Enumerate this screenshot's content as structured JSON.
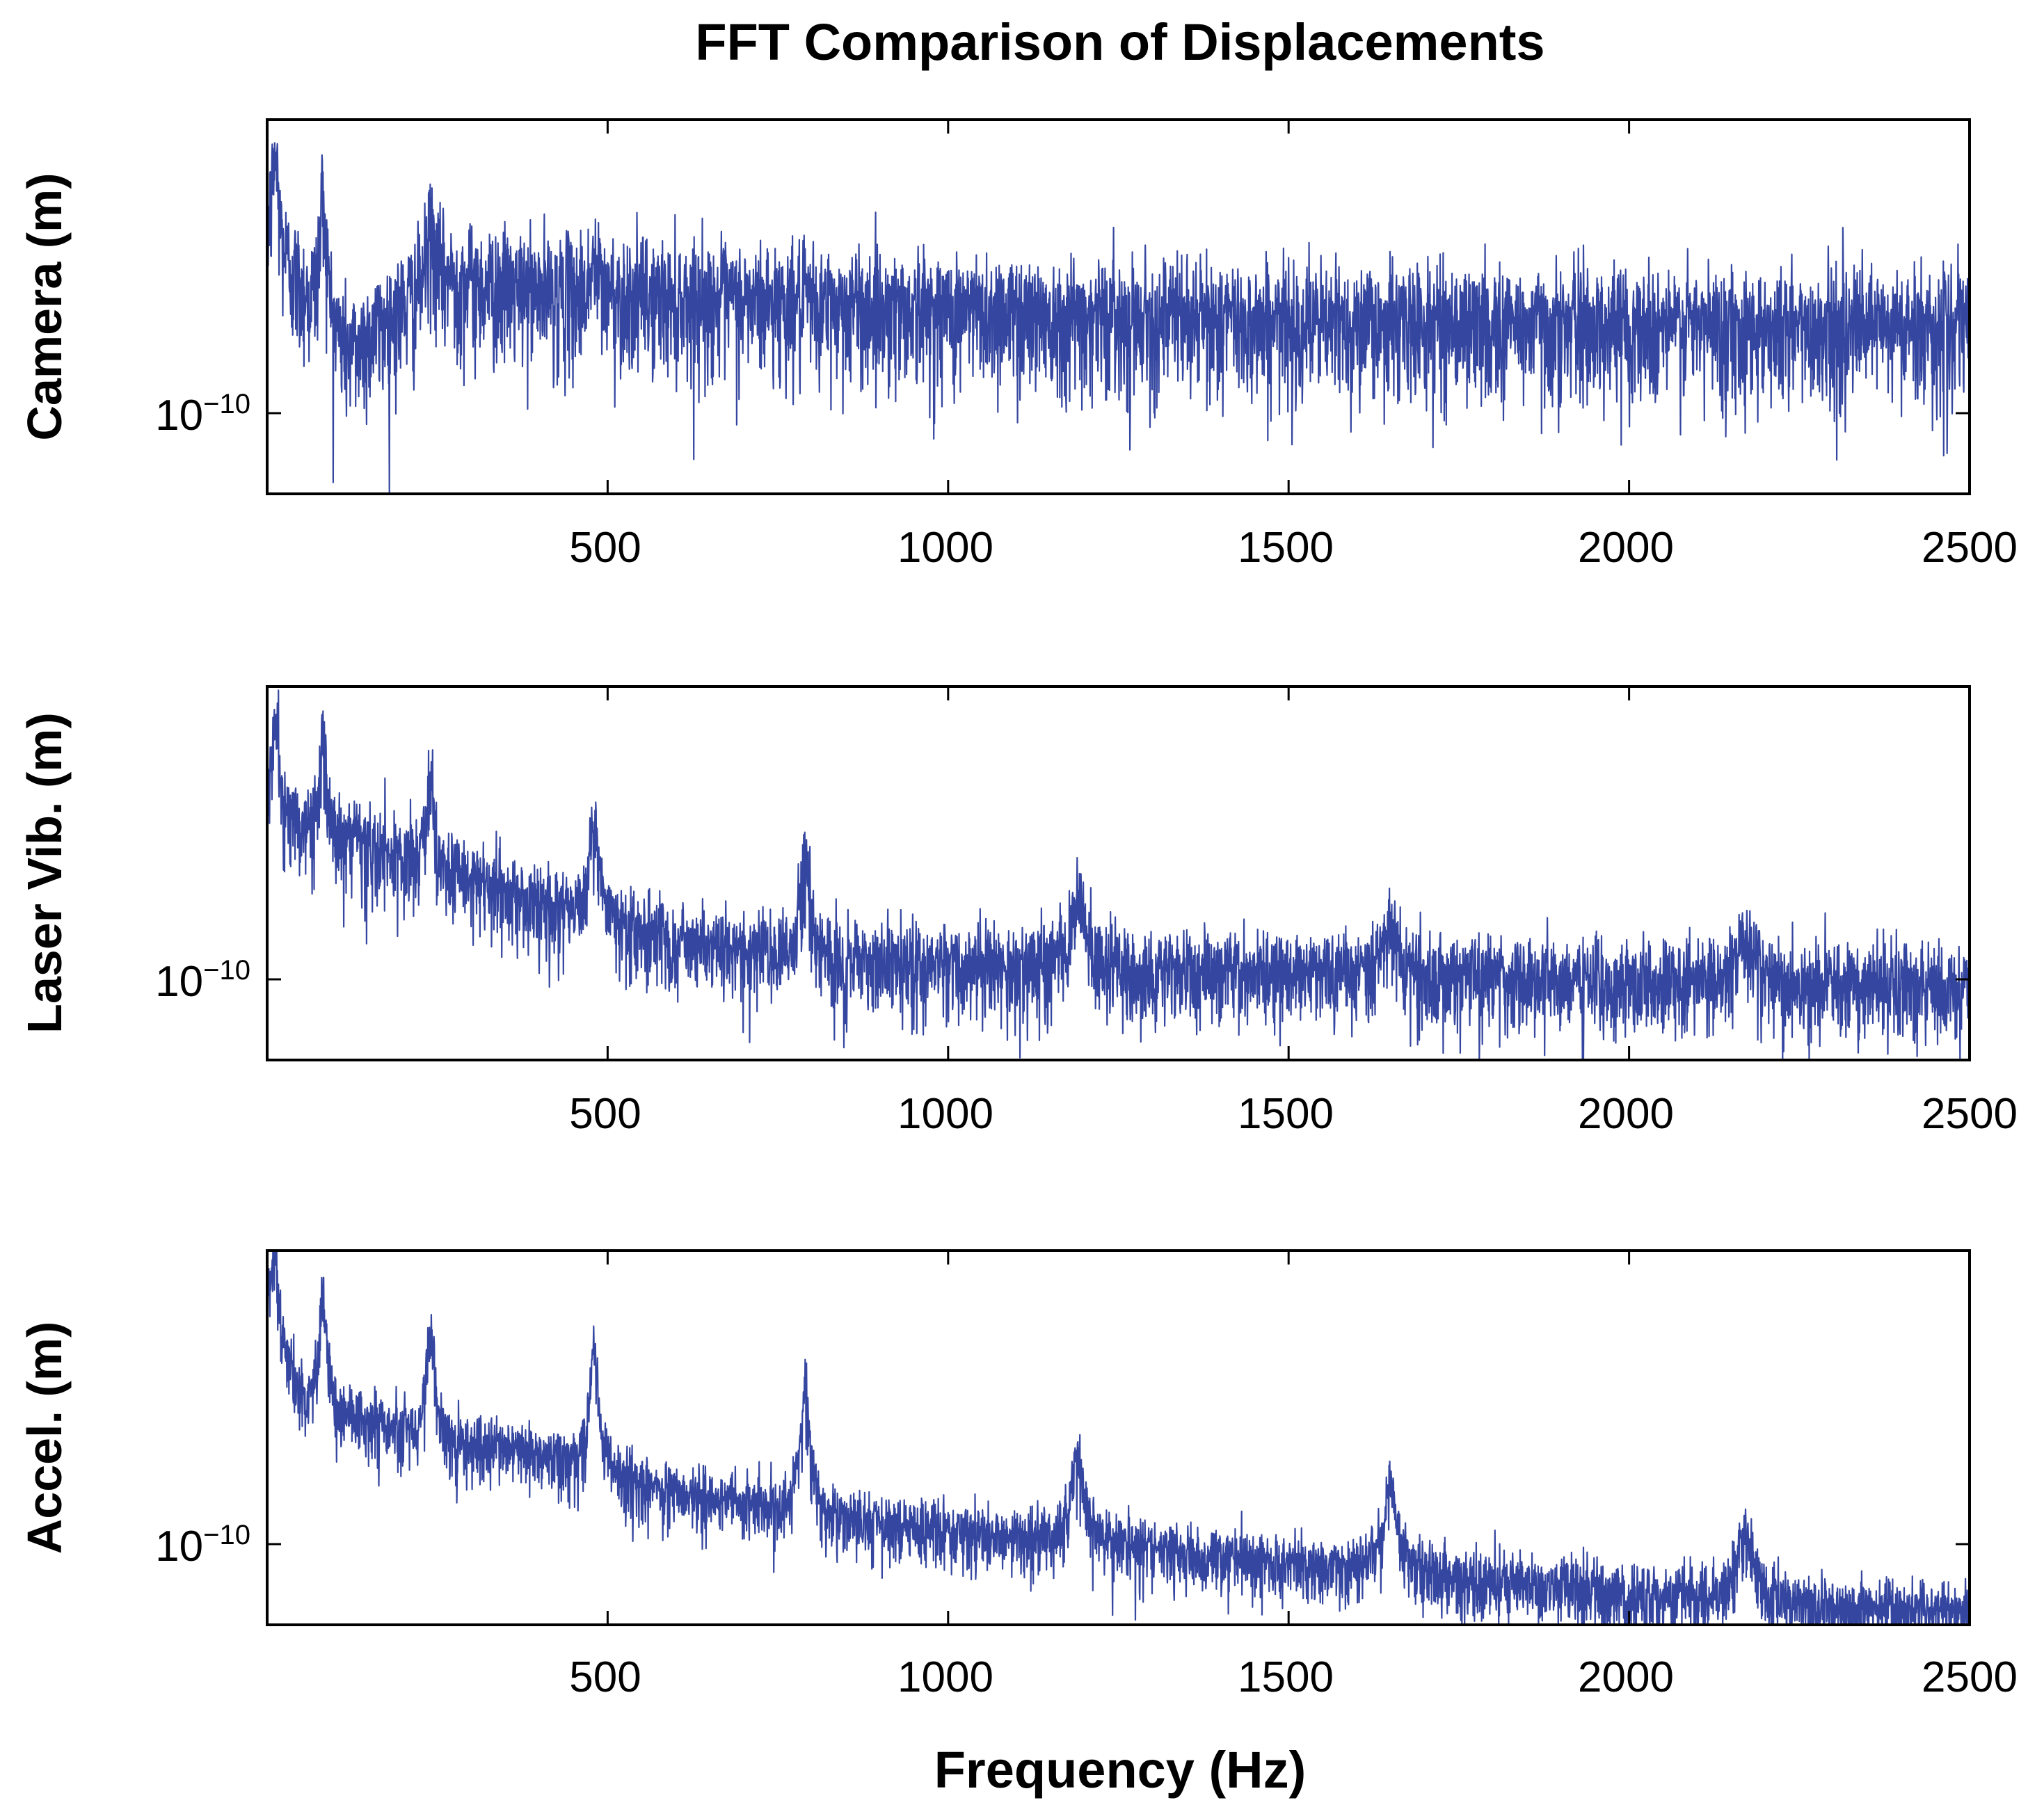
{
  "chart_data": [
    {
      "type": "line",
      "title": "FFT Comparison of Displacements",
      "ylabel": "Camera (m)",
      "xlabel": "",
      "xlim": [
        0,
        2500
      ],
      "xticks": [
        "500",
        "1000",
        "1500",
        "2000",
        "2500"
      ],
      "xtick_values": [
        500,
        1000,
        1500,
        2000,
        2500
      ],
      "yscale": "log",
      "ylim_log10": [
        -10.9,
        -7.8
      ],
      "yticks": [
        {
          "base": "10",
          "exponent": "−10",
          "value_log10": -10
        }
      ],
      "series": [
        {
          "name": "Camera",
          "color": "#3546a0",
          "baseline_log10": [
            [
              0,
              -8.8
            ],
            [
              40,
              -9.1
            ],
            [
              60,
              -9.3
            ],
            [
              120,
              -9.7
            ],
            [
              250,
              -9.1
            ],
            [
              400,
              -9.2
            ],
            [
              1000,
              -9.35
            ],
            [
              1500,
              -9.45
            ],
            [
              2500,
              -9.5
            ]
          ],
          "noise_sigma_log10": 0.22,
          "peaks": [
            [
              12,
              -8.1
            ],
            [
              82,
              -8.4
            ],
            [
              240,
              -8.7
            ],
            [
              480,
              -9.0
            ]
          ]
        }
      ]
    },
    {
      "type": "line",
      "ylabel": "Laser Vib. (m)",
      "xlim": [
        0,
        2500
      ],
      "xticks": [
        "500",
        "1000",
        "1500",
        "2000",
        "2500"
      ],
      "xtick_values": [
        500,
        1000,
        1500,
        2000,
        2500
      ],
      "yscale": "log",
      "ylim_log10": [
        -10.75,
        -7.75
      ],
      "yticks": [
        {
          "base": "10",
          "exponent": "−10",
          "value_log10": -10
        }
      ],
      "series": [
        {
          "name": "Laser Vib.",
          "color": "#3546a0",
          "baseline_log10": [
            [
              0,
              -8.7
            ],
            [
              50,
              -8.9
            ],
            [
              200,
              -9.15
            ],
            [
              400,
              -9.5
            ],
            [
              600,
              -9.8
            ],
            [
              800,
              -9.95
            ],
            [
              1200,
              -10.0
            ],
            [
              2500,
              -10.15
            ]
          ],
          "noise_sigma_log10": 0.15,
          "peaks": [
            [
              12,
              -8.05
            ],
            [
              82,
              -8.2
            ],
            [
              240,
              -8.5
            ],
            [
              480,
              -8.75
            ],
            [
              790,
              -9.15
            ],
            [
              1190,
              -9.4
            ],
            [
              1650,
              -9.7
            ],
            [
              2170,
              -9.75
            ]
          ]
        }
      ]
    },
    {
      "type": "line",
      "ylabel": "Accel. (m)",
      "xlabel": "Frequency (Hz)",
      "xlim": [
        0,
        2500
      ],
      "xticks": [
        "500",
        "1000",
        "1500",
        "2000",
        "2500"
      ],
      "xtick_values": [
        500,
        1000,
        1500,
        2000,
        2500
      ],
      "yscale": "log",
      "ylim_log10": [
        -10.6,
        -7.6
      ],
      "yticks": [
        {
          "base": "10",
          "exponent": "−10",
          "value_log10": -10
        }
      ],
      "series": [
        {
          "name": "Accel.",
          "color": "#3546a0",
          "baseline_log10": [
            [
              0,
              -8.1
            ],
            [
              50,
              -8.8
            ],
            [
              200,
              -9.05
            ],
            [
              400,
              -9.25
            ],
            [
              600,
              -9.55
            ],
            [
              900,
              -9.8
            ],
            [
              1200,
              -9.95
            ],
            [
              1600,
              -10.15
            ],
            [
              2000,
              -10.35
            ],
            [
              2500,
              -10.5
            ]
          ],
          "noise_sigma_log10": 0.12,
          "peaks": [
            [
              12,
              -7.65
            ],
            [
              82,
              -7.9
            ],
            [
              240,
              -8.2
            ],
            [
              480,
              -8.4
            ],
            [
              790,
              -8.75
            ],
            [
              1190,
              -9.2
            ],
            [
              1650,
              -9.5
            ],
            [
              2170,
              -9.85
            ]
          ]
        }
      ]
    }
  ]
}
